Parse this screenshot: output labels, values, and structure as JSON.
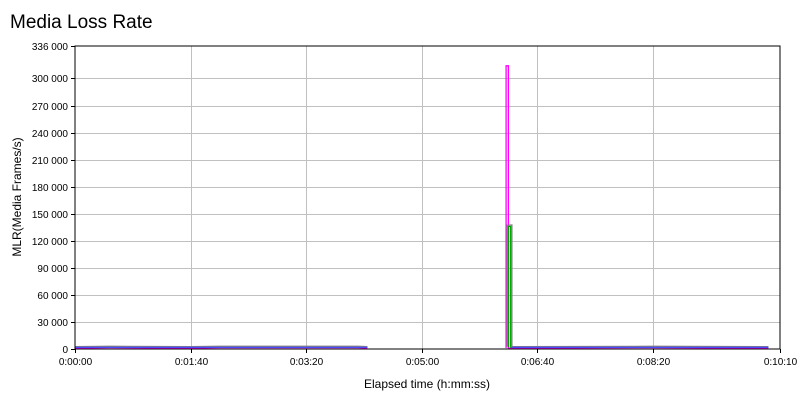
{
  "chart_data": {
    "type": "line",
    "title": "Media Loss Rate",
    "xlabel": "Elapsed time (h:mm:ss)",
    "ylabel": "MLR(Media Frames/s)",
    "xlim": [
      0,
      610
    ],
    "ylim": [
      0,
      336000
    ],
    "x_ticks": [
      0,
      100,
      200,
      300,
      400,
      500,
      610
    ],
    "x_tick_labels": [
      "0:00:00",
      "0:01:40",
      "0:03:20",
      "0:05:00",
      "0:06:40",
      "0:08:20",
      "0:10:10"
    ],
    "y_ticks": [
      0,
      30000,
      60000,
      90000,
      120000,
      150000,
      180000,
      210000,
      240000,
      270000,
      300000,
      336000
    ],
    "y_tick_labels": [
      "0",
      "30 000",
      "60 000",
      "90 000",
      "120 000",
      "150 000",
      "180 000",
      "210 000",
      "240 000",
      "270 000",
      "300 000",
      "336 000"
    ],
    "grid": true,
    "series": [
      {
        "color": "#ff00ff",
        "x": [
          0,
          30,
          100,
          125,
          245,
          253,
          253,
          373,
          373,
          375,
          375,
          500,
          600
        ],
        "y": [
          1000,
          1500,
          1000,
          1500,
          1500,
          1000,
          null,
          1000,
          314000,
          314000,
          1000,
          1500,
          1000
        ]
      },
      {
        "color": "#00a000",
        "x": [
          0,
          30,
          100,
          125,
          245,
          253,
          253,
          375,
          375,
          377,
          377,
          500,
          600
        ],
        "y": [
          2000,
          2500,
          2000,
          2500,
          2500,
          2000,
          null,
          2000,
          136000,
          136000,
          2000,
          2500,
          2000
        ]
      },
      {
        "color": "#808080",
        "x": [
          0,
          30,
          100,
          125,
          245,
          253,
          253,
          374,
          374,
          378,
          378,
          500,
          600
        ],
        "y": [
          2500,
          3000,
          2500,
          3000,
          3000,
          2500,
          null,
          2500,
          137500,
          137500,
          2500,
          3000,
          2500
        ]
      },
      {
        "color": "#4a4aff",
        "x": [
          0,
          100,
          245,
          253,
          253,
          378,
          500,
          600
        ],
        "y": [
          1800,
          1800,
          1800,
          1800,
          null,
          1800,
          1800,
          1800
        ]
      }
    ]
  }
}
